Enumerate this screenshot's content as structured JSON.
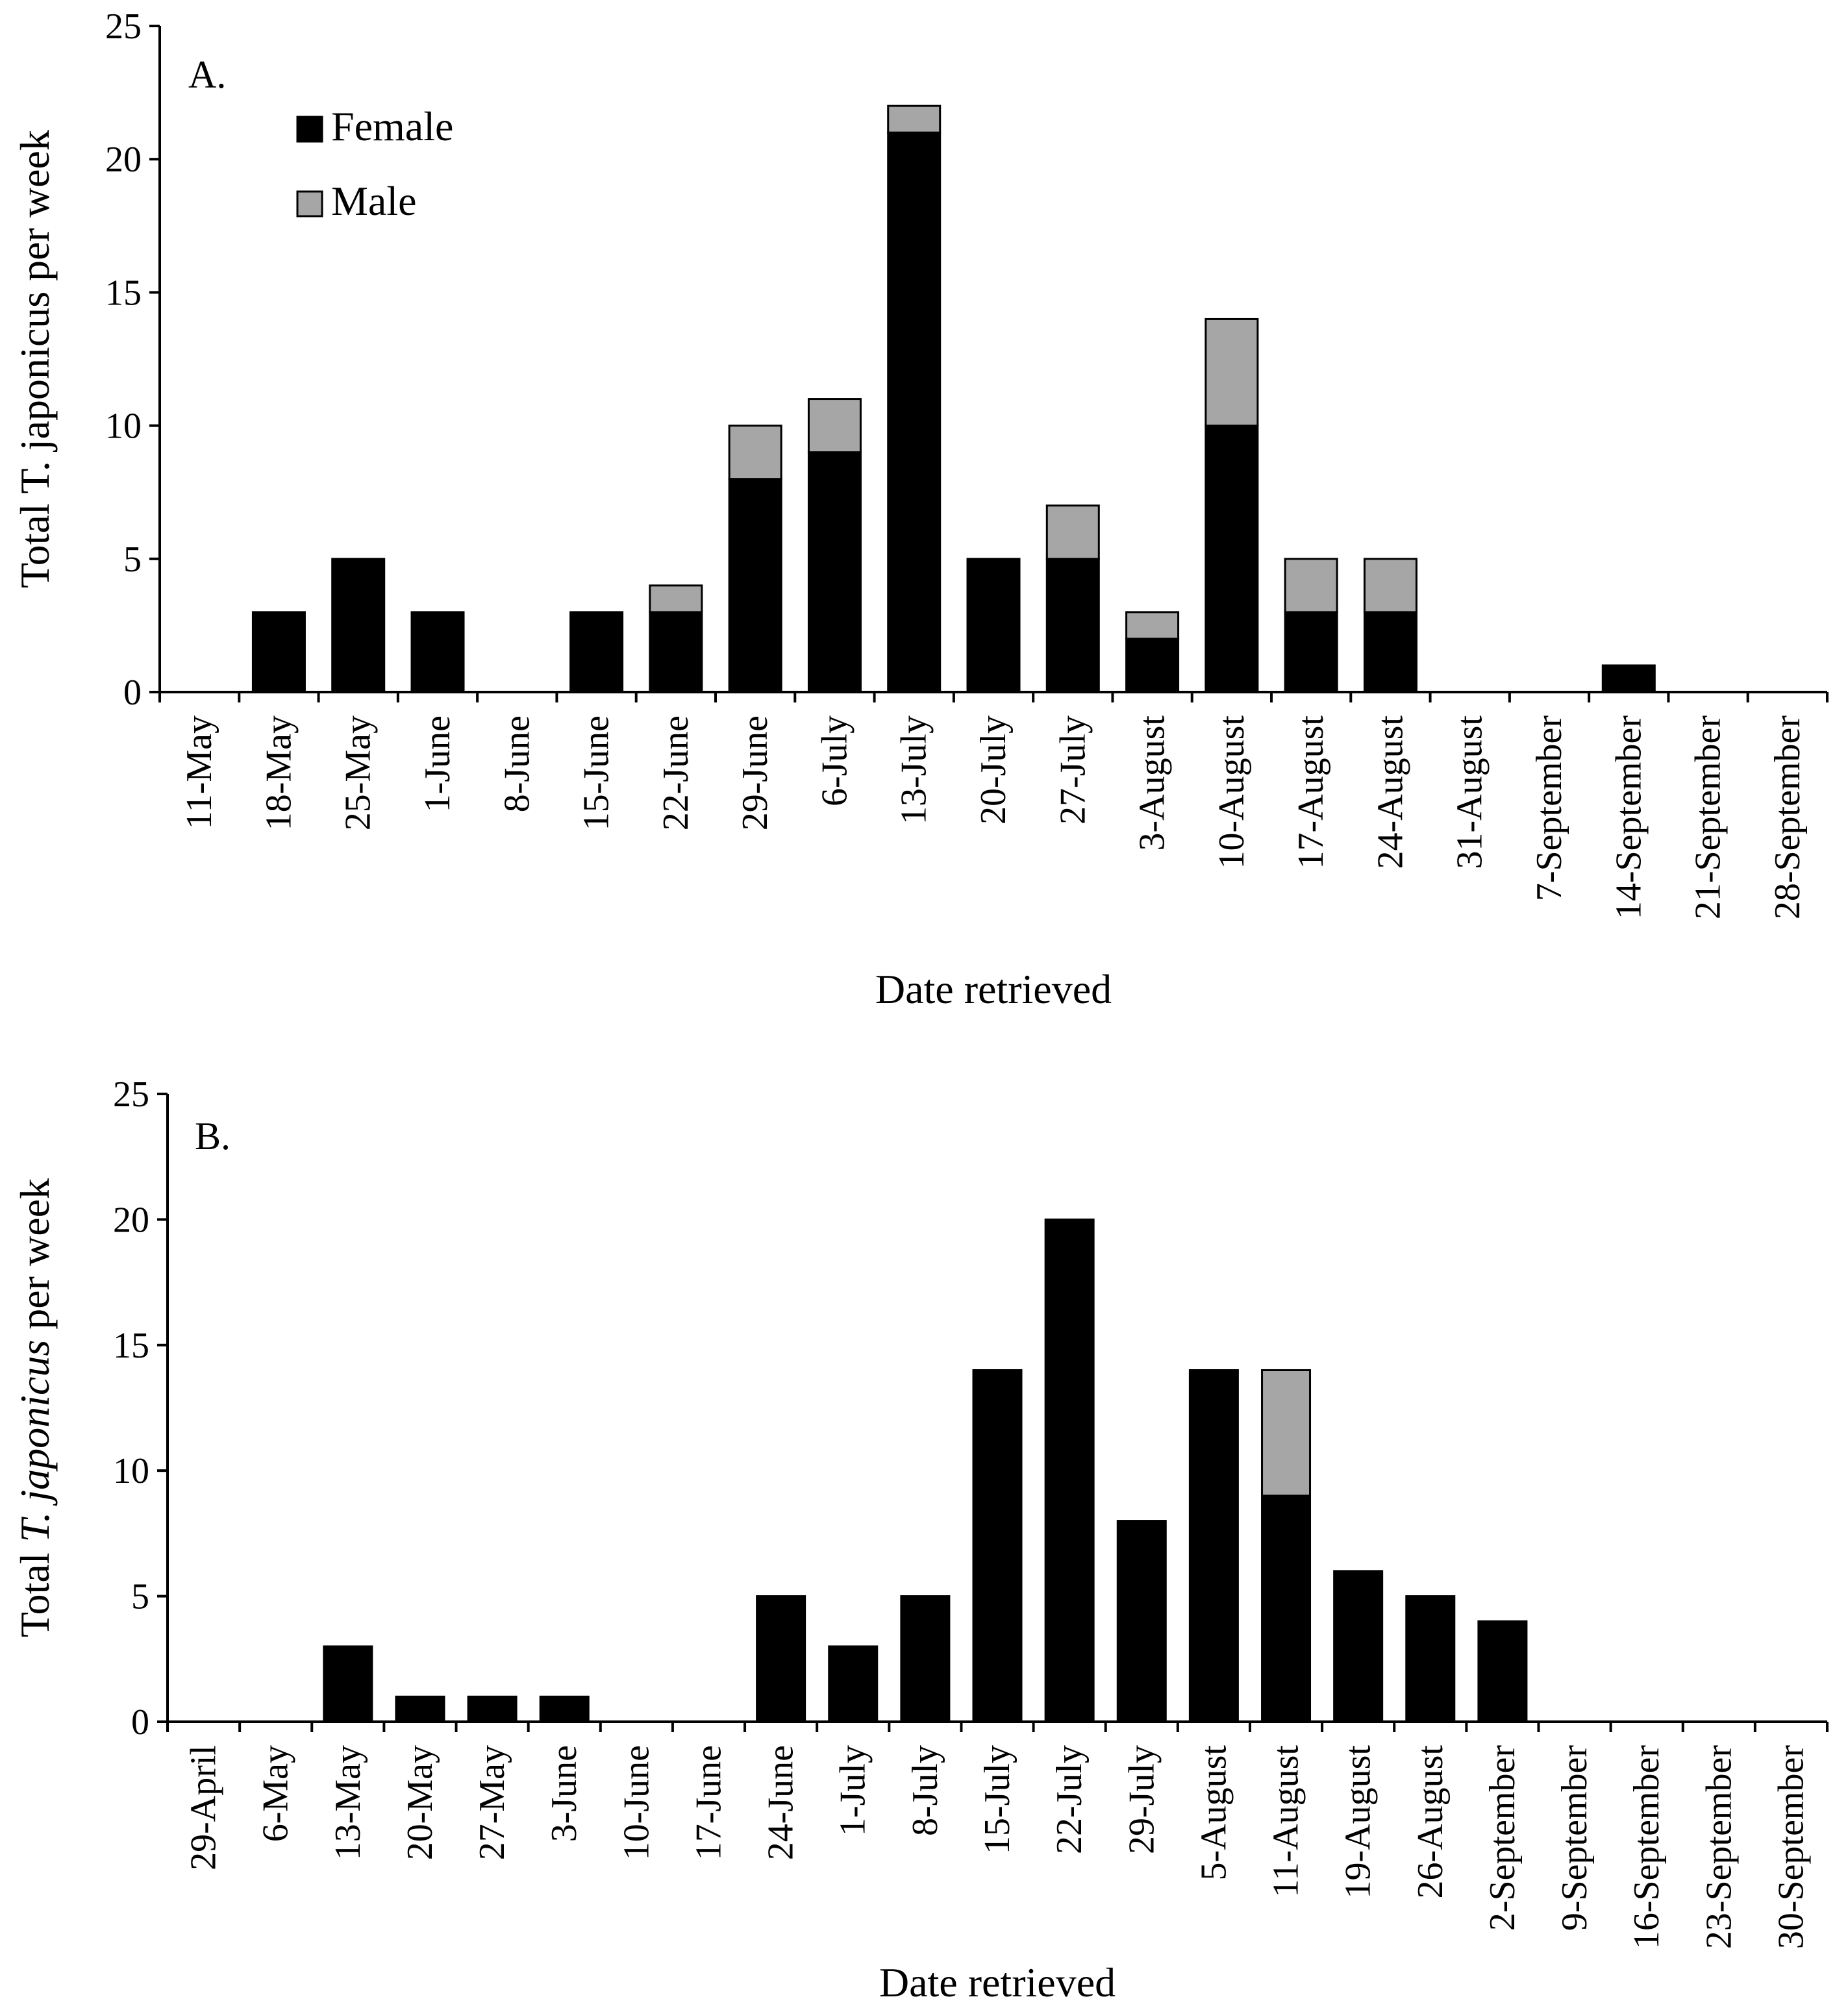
{
  "colors": {
    "female": "#000000",
    "male": "#a6a6a6",
    "axis": "#000000",
    "background": "#ffffff"
  },
  "chart_data": [
    {
      "type": "bar",
      "stacked": true,
      "panel_label": "A.",
      "xlabel": "Date retrieved",
      "ylabel": "Total T. japonicus per week",
      "ylabel_parts": [
        {
          "text": "Total T. japonicus per week",
          "italic": false
        }
      ],
      "ylim": [
        0,
        25
      ],
      "yticks": [
        0,
        5,
        10,
        15,
        20,
        25
      ],
      "legend_position": "top-left",
      "categories": [
        "11-May",
        "18-May",
        "25-May",
        "1-June",
        "8-June",
        "15-June",
        "22-June",
        "29-June",
        "6-July",
        "13-July",
        "20-July",
        "27-July",
        "3-August",
        "10-August",
        "17-August",
        "24-August",
        "31-August",
        "7-September",
        "14-September",
        "21-September",
        "28-September"
      ],
      "series": [
        {
          "name": "Female",
          "color": "#000000",
          "values": [
            0,
            3,
            5,
            3,
            0,
            3,
            3,
            8,
            9,
            21,
            5,
            5,
            2,
            10,
            3,
            3,
            0,
            0,
            1,
            0,
            0
          ]
        },
        {
          "name": "Male",
          "color": "#a6a6a6",
          "values": [
            0,
            0,
            0,
            0,
            0,
            0,
            1,
            2,
            2,
            1,
            0,
            2,
            1,
            4,
            2,
            2,
            0,
            0,
            0,
            0,
            0
          ]
        }
      ]
    },
    {
      "type": "bar",
      "stacked": true,
      "panel_label": "B.",
      "xlabel": "Date retrieved",
      "ylabel": "Total T. japonicus per week",
      "ylabel_parts": [
        {
          "text": "Total ",
          "italic": false
        },
        {
          "text": "T. japonicus",
          "italic": true
        },
        {
          "text": " per week",
          "italic": false
        }
      ],
      "ylim": [
        0,
        25
      ],
      "yticks": [
        0,
        5,
        10,
        15,
        20,
        25
      ],
      "categories": [
        "29-April",
        "6-May",
        "13-May",
        "20-May",
        "27-May",
        "3-June",
        "10-June",
        "17-June",
        "24-June",
        "1-July",
        "8-July",
        "15-July",
        "22-July",
        "29-July",
        "5-August",
        "11-August",
        "19-August",
        "26-August",
        "2-September",
        "9-September",
        "16-September",
        "23-September",
        "30-September"
      ],
      "series": [
        {
          "name": "Female",
          "color": "#000000",
          "values": [
            0,
            0,
            3,
            1,
            1,
            1,
            0,
            0,
            5,
            3,
            5,
            14,
            20,
            8,
            14,
            9,
            6,
            5,
            4,
            0,
            0,
            0,
            0
          ]
        },
        {
          "name": "Male",
          "color": "#a6a6a6",
          "values": [
            0,
            0,
            0,
            0,
            0,
            0,
            0,
            0,
            0,
            0,
            0,
            0,
            0,
            0,
            0,
            5,
            0,
            0,
            0,
            0,
            0,
            0,
            0
          ]
        }
      ]
    }
  ]
}
